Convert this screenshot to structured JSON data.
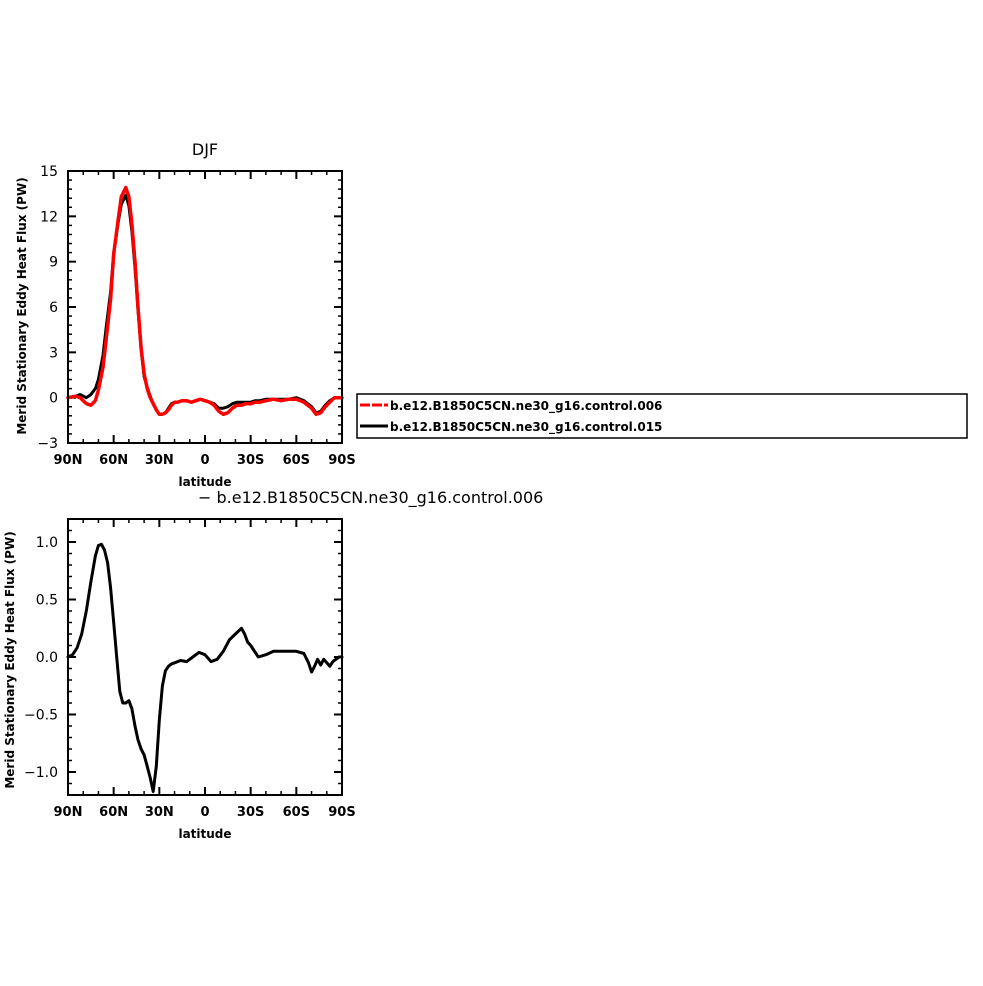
{
  "chart_data": [
    {
      "type": "line",
      "title": "DJF",
      "xlabel": "latitude",
      "ylabel": "Merid Stationary Eddy Heat Flux (PW)",
      "xlim": [
        90,
        -90
      ],
      "ylim": [
        -3,
        15
      ],
      "xticks": [
        90,
        60,
        30,
        0,
        -30,
        -60,
        -90
      ],
      "xtick_labels": [
        "90N",
        "60N",
        "30N",
        "0",
        "30S",
        "60S",
        "90S"
      ],
      "yticks": [
        -3,
        0,
        3,
        6,
        9,
        12,
        15
      ],
      "ytick_labels": [
        "−3",
        "0",
        "3",
        "6",
        "9",
        "12",
        "15"
      ],
      "legend": "right",
      "x": [
        90,
        85,
        82,
        78,
        75,
        72,
        70,
        67,
        65,
        62,
        60,
        57,
        55,
        52,
        50,
        48,
        46,
        44,
        42,
        40,
        38,
        36,
        34,
        32,
        30,
        28,
        26,
        24,
        22,
        20,
        18,
        15,
        12,
        9,
        6,
        3,
        0,
        -3,
        -6,
        -9,
        -12,
        -15,
        -18,
        -21,
        -24,
        -27,
        -30,
        -33,
        -36,
        -40,
        -45,
        -50,
        -55,
        -60,
        -65,
        -70,
        -73,
        -76,
        -79,
        -82,
        -85,
        -88,
        -90
      ],
      "series": [
        {
          "name": "b.e12.B1850C5CN.ne30_g16.control.006",
          "color": "#ff0000",
          "values": [
            0.0,
            0.1,
            0.0,
            -0.4,
            -0.5,
            -0.2,
            0.5,
            2.0,
            3.8,
            6.5,
            9.5,
            11.8,
            13.3,
            13.9,
            13.3,
            11.5,
            9.0,
            6.0,
            3.3,
            1.6,
            0.6,
            0.0,
            -0.4,
            -0.8,
            -1.1,
            -1.1,
            -1.0,
            -0.8,
            -0.5,
            -0.3,
            -0.3,
            -0.2,
            -0.2,
            -0.3,
            -0.2,
            -0.1,
            -0.2,
            -0.3,
            -0.5,
            -0.9,
            -1.1,
            -1.0,
            -0.7,
            -0.5,
            -0.5,
            -0.4,
            -0.4,
            -0.3,
            -0.3,
            -0.2,
            -0.1,
            -0.2,
            -0.1,
            -0.1,
            -0.3,
            -0.7,
            -1.1,
            -1.0,
            -0.6,
            -0.3,
            0.0,
            0.0,
            0.0
          ]
        },
        {
          "name": "b.e12.B1850C5CN.ne30_g16.control.015",
          "color": "#000000",
          "values": [
            0.0,
            0.1,
            0.2,
            0.0,
            0.2,
            0.6,
            1.2,
            2.8,
            4.6,
            7.0,
            9.6,
            11.6,
            12.8,
            13.4,
            12.7,
            11.0,
            8.6,
            5.8,
            3.2,
            1.4,
            0.7,
            0.1,
            -0.4,
            -0.8,
            -1.1,
            -1.1,
            -1.0,
            -0.7,
            -0.4,
            -0.3,
            -0.3,
            -0.2,
            -0.2,
            -0.3,
            -0.2,
            -0.1,
            -0.2,
            -0.3,
            -0.4,
            -0.7,
            -0.7,
            -0.6,
            -0.4,
            -0.3,
            -0.3,
            -0.3,
            -0.3,
            -0.2,
            -0.2,
            -0.1,
            -0.1,
            -0.1,
            -0.1,
            0.0,
            -0.2,
            -0.6,
            -1.0,
            -0.9,
            -0.5,
            -0.2,
            0.0,
            0.0,
            0.0
          ]
        }
      ]
    },
    {
      "type": "line",
      "title": "b.e12.B1850C5CN.ne30_g16.control.006",
      "xlabel": "latitude",
      "ylabel": "Merid Stationary Eddy Heat Flux (PW)",
      "xlim": [
        90,
        -90
      ],
      "ylim": [
        -1.2,
        1.2
      ],
      "xticks": [
        90,
        60,
        30,
        0,
        -30,
        -60,
        -90
      ],
      "xtick_labels": [
        "90N",
        "60N",
        "30N",
        "0",
        "30S",
        "60S",
        "90S"
      ],
      "yticks": [
        -1.0,
        -0.5,
        0.0,
        0.5,
        1.0
      ],
      "ytick_labels": [
        "−1.0",
        "−0.5",
        "0.0",
        "0.5",
        "1.0"
      ],
      "x": [
        90,
        87,
        84,
        81,
        78,
        75,
        72,
        70,
        68,
        66,
        64,
        62,
        60,
        58,
        56,
        54,
        52,
        50,
        48,
        46,
        44,
        42,
        40,
        38,
        36,
        34,
        32,
        30,
        28,
        26,
        24,
        22,
        20,
        16,
        12,
        8,
        4,
        0,
        -4,
        -8,
        -12,
        -16,
        -20,
        -24,
        -26,
        -28,
        -30,
        -35,
        -40,
        -45,
        -50,
        -55,
        -60,
        -65,
        -68,
        -70,
        -72,
        -74,
        -76,
        -78,
        -80,
        -82,
        -84,
        -86,
        -88,
        -90
      ],
      "series": [
        {
          "name": "b.e12.B1850C5CN.ne30_g16.control.006",
          "color": "#000000",
          "values": [
            0.0,
            0.02,
            0.08,
            0.2,
            0.4,
            0.65,
            0.88,
            0.97,
            0.98,
            0.93,
            0.82,
            0.6,
            0.3,
            0.0,
            -0.3,
            -0.4,
            -0.4,
            -0.38,
            -0.45,
            -0.6,
            -0.72,
            -0.8,
            -0.85,
            -0.95,
            -1.05,
            -1.17,
            -0.95,
            -0.55,
            -0.25,
            -0.12,
            -0.08,
            -0.06,
            -0.05,
            -0.03,
            -0.04,
            0.0,
            0.04,
            0.02,
            -0.04,
            -0.02,
            0.05,
            0.15,
            0.2,
            0.25,
            0.2,
            0.13,
            0.1,
            0.0,
            0.02,
            0.05,
            0.05,
            0.05,
            0.05,
            0.03,
            -0.05,
            -0.13,
            -0.08,
            -0.02,
            -0.07,
            -0.02,
            -0.05,
            -0.08,
            -0.04,
            -0.02,
            0.0,
            0.0
          ]
        }
      ]
    }
  ],
  "top_panel": {
    "title": "DJF",
    "xlabel": "latitude",
    "ylabel": "Merid Stationary Eddy Heat Flux (PW)"
  },
  "bottom_panel": {
    "title": "− b.e12.B1850C5CN.ne30_g16.control.006",
    "xlabel": "latitude",
    "ylabel": "Merid Stationary Eddy Heat Flux (PW)"
  },
  "legend": {
    "items": [
      {
        "label": "b.e12.B1850C5CN.ne30_g16.control.006",
        "color": "#ff0000"
      },
      {
        "label": "b.e12.B1850C5CN.ne30_g16.control.015",
        "color": "#000000"
      }
    ]
  }
}
